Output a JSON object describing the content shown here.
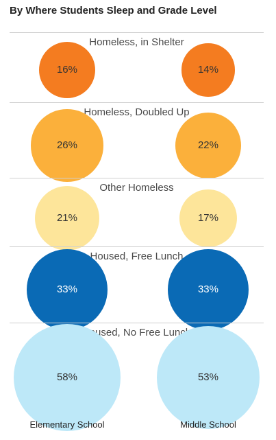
{
  "title": "By Where Students Sleep and Grade Level",
  "chart_data": {
    "type": "bubble",
    "title": "By Where Students Sleep and Grade Level",
    "columns": [
      "Elementary School",
      "Middle School"
    ],
    "rows": [
      {
        "label": "Homeless, in Shelter",
        "values": [
          16,
          14
        ],
        "labels": [
          "16%",
          "14%"
        ],
        "color": "#f47c20",
        "text_color": "#333333"
      },
      {
        "label": "Homeless, Doubled Up",
        "values": [
          26,
          22
        ],
        "labels": [
          "26%",
          "22%"
        ],
        "color": "#fbb03b",
        "text_color": "#333333"
      },
      {
        "label": "Other Homeless",
        "values": [
          21,
          17
        ],
        "labels": [
          "21%",
          "17%"
        ],
        "color": "#fde59a",
        "text_color": "#333333"
      },
      {
        "label": "Housed, Free Lunch",
        "values": [
          33,
          33
        ],
        "labels": [
          "33%",
          "33%"
        ],
        "color": "#0a6ab5",
        "text_color": "#ffffff"
      },
      {
        "label": "Housed, No Free Lunch",
        "values": [
          58,
          53
        ],
        "labels": [
          "58%",
          "53%"
        ],
        "color": "#bde8f8",
        "text_color": "#333333"
      }
    ]
  }
}
